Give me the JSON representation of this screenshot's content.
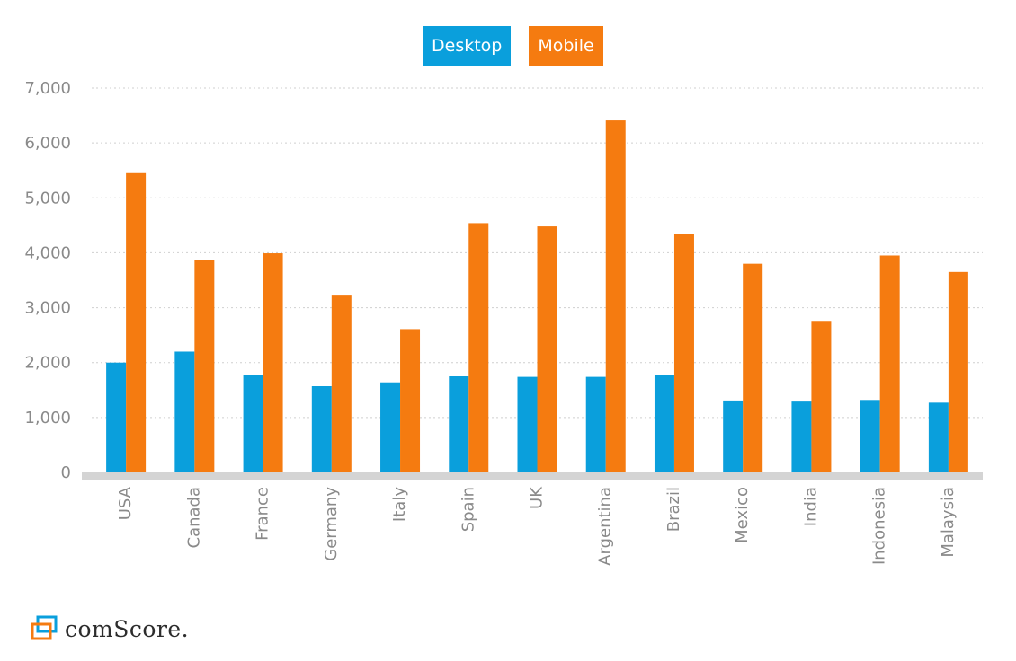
{
  "colors": {
    "desktop": "#0a9fdc",
    "mobile": "#f57b10",
    "axis": "#d4d4d4",
    "grid": "#cfcfcf",
    "text": "#8a8a8a"
  },
  "legend": {
    "desktop_label": "Desktop",
    "mobile_label": "Mobile"
  },
  "logo": {
    "text": "comScore."
  },
  "chart_data": {
    "type": "bar",
    "title": "",
    "xlabel": "",
    "ylabel": "",
    "ylim": [
      0,
      7000
    ],
    "yticks": [
      0,
      1000,
      2000,
      3000,
      4000,
      5000,
      6000,
      7000
    ],
    "ytick_labels": [
      "0",
      "1,000",
      "2,000",
      "3,000",
      "4,000",
      "5,000",
      "6,000",
      "7,000"
    ],
    "grid": true,
    "legend_position": "top-center",
    "categories": [
      "USA",
      "Canada",
      "France",
      "Germany",
      "Italy",
      "Spain",
      "UK",
      "Argentina",
      "Brazil",
      "Mexico",
      "India",
      "Indonesia",
      "Malaysia"
    ],
    "series": [
      {
        "name": "Desktop",
        "values": [
          2000,
          2200,
          1780,
          1570,
          1640,
          1750,
          1740,
          1740,
          1770,
          1310,
          1290,
          1320,
          1270
        ]
      },
      {
        "name": "Mobile",
        "values": [
          5450,
          3860,
          3990,
          3220,
          2610,
          4540,
          4480,
          6410,
          4350,
          3800,
          2760,
          3950,
          3650
        ]
      }
    ]
  }
}
